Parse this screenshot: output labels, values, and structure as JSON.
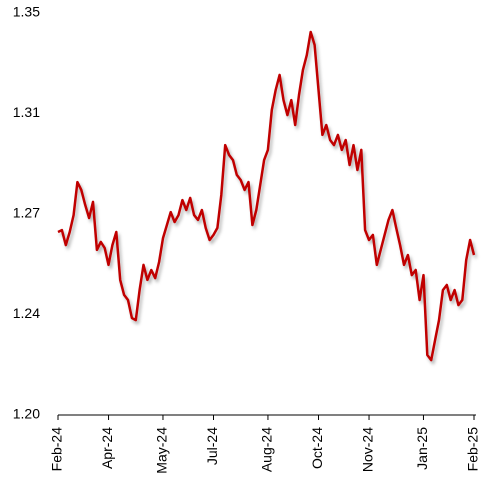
{
  "chart_data": {
    "type": "line",
    "categories": [
      "Feb-24",
      null,
      null,
      null,
      null,
      null,
      null,
      null,
      null,
      null,
      null,
      null,
      null,
      "Apr-24",
      null,
      null,
      null,
      null,
      null,
      null,
      null,
      null,
      null,
      null,
      null,
      null,
      null,
      "May-24",
      null,
      null,
      null,
      null,
      null,
      null,
      null,
      null,
      null,
      null,
      null,
      null,
      "Jul-24",
      null,
      null,
      null,
      null,
      null,
      null,
      null,
      null,
      null,
      null,
      null,
      null,
      null,
      "Aug-24",
      null,
      null,
      null,
      null,
      null,
      null,
      null,
      null,
      null,
      null,
      null,
      null,
      "Oct-24",
      null,
      null,
      null,
      null,
      null,
      null,
      null,
      null,
      null,
      null,
      null,
      null,
      "Nov-24",
      null,
      null,
      null,
      null,
      null,
      null,
      null,
      null,
      null,
      null,
      null,
      null,
      null,
      "Jan-25",
      null,
      null,
      null,
      null,
      null,
      null,
      null,
      null,
      null,
      null,
      null,
      null,
      "Feb-25"
    ],
    "series": [
      {
        "color": "#c00000",
        "values": [
          1.2683,
          1.269,
          1.2634,
          1.2683,
          1.2746,
          1.2869,
          1.284,
          1.2784,
          1.2735,
          1.2795,
          1.2616,
          1.2646,
          1.2623,
          1.256,
          1.2634,
          1.2683,
          1.2504,
          1.2448,
          1.2429,
          1.2362,
          1.2354,
          1.2466,
          1.256,
          1.2504,
          1.2541,
          1.2511,
          1.2571,
          1.266,
          1.2709,
          1.2757,
          1.272,
          1.2746,
          1.2802,
          1.2765,
          1.281,
          1.2746,
          1.2728,
          1.2765,
          1.2698,
          1.2653,
          1.2672,
          1.2698,
          1.2821,
          1.3007,
          1.297,
          1.2951,
          1.2896,
          1.2877,
          1.284,
          1.2869,
          1.2709,
          1.2765,
          1.2858,
          1.2951,
          1.2989,
          1.3138,
          1.3213,
          1.3269,
          1.3175,
          1.3119,
          1.3175,
          1.3082,
          1.3194,
          1.3287,
          1.3343,
          1.3429,
          1.3381,
          1.3213,
          1.3045,
          1.3082,
          1.3026,
          1.3007,
          1.3045,
          1.2989,
          1.3026,
          1.2933,
          1.3007,
          1.2914,
          1.2989,
          1.269,
          1.2653,
          1.2672,
          1.256,
          1.2616,
          1.2672,
          1.2728,
          1.2765,
          1.2698,
          1.2634,
          1.256,
          1.2597,
          1.2522,
          1.2541,
          1.2429,
          1.2522,
          1.2224,
          1.2205,
          1.228,
          1.2354,
          1.2466,
          1.2485,
          1.2429,
          1.2466,
          1.241,
          1.2429,
          1.2578,
          1.2653,
          1.2597
        ]
      }
    ],
    "ylim": [
      1.2,
      1.35
    ],
    "yticks": [
      {
        "value": 1.2,
        "label": "1.20"
      },
      {
        "value": 1.2375,
        "label": "1.24"
      },
      {
        "value": 1.275,
        "label": "1.27"
      },
      {
        "value": 1.3125,
        "label": "1.31"
      },
      {
        "value": 1.35,
        "label": "1.35"
      }
    ],
    "grid": false
  }
}
